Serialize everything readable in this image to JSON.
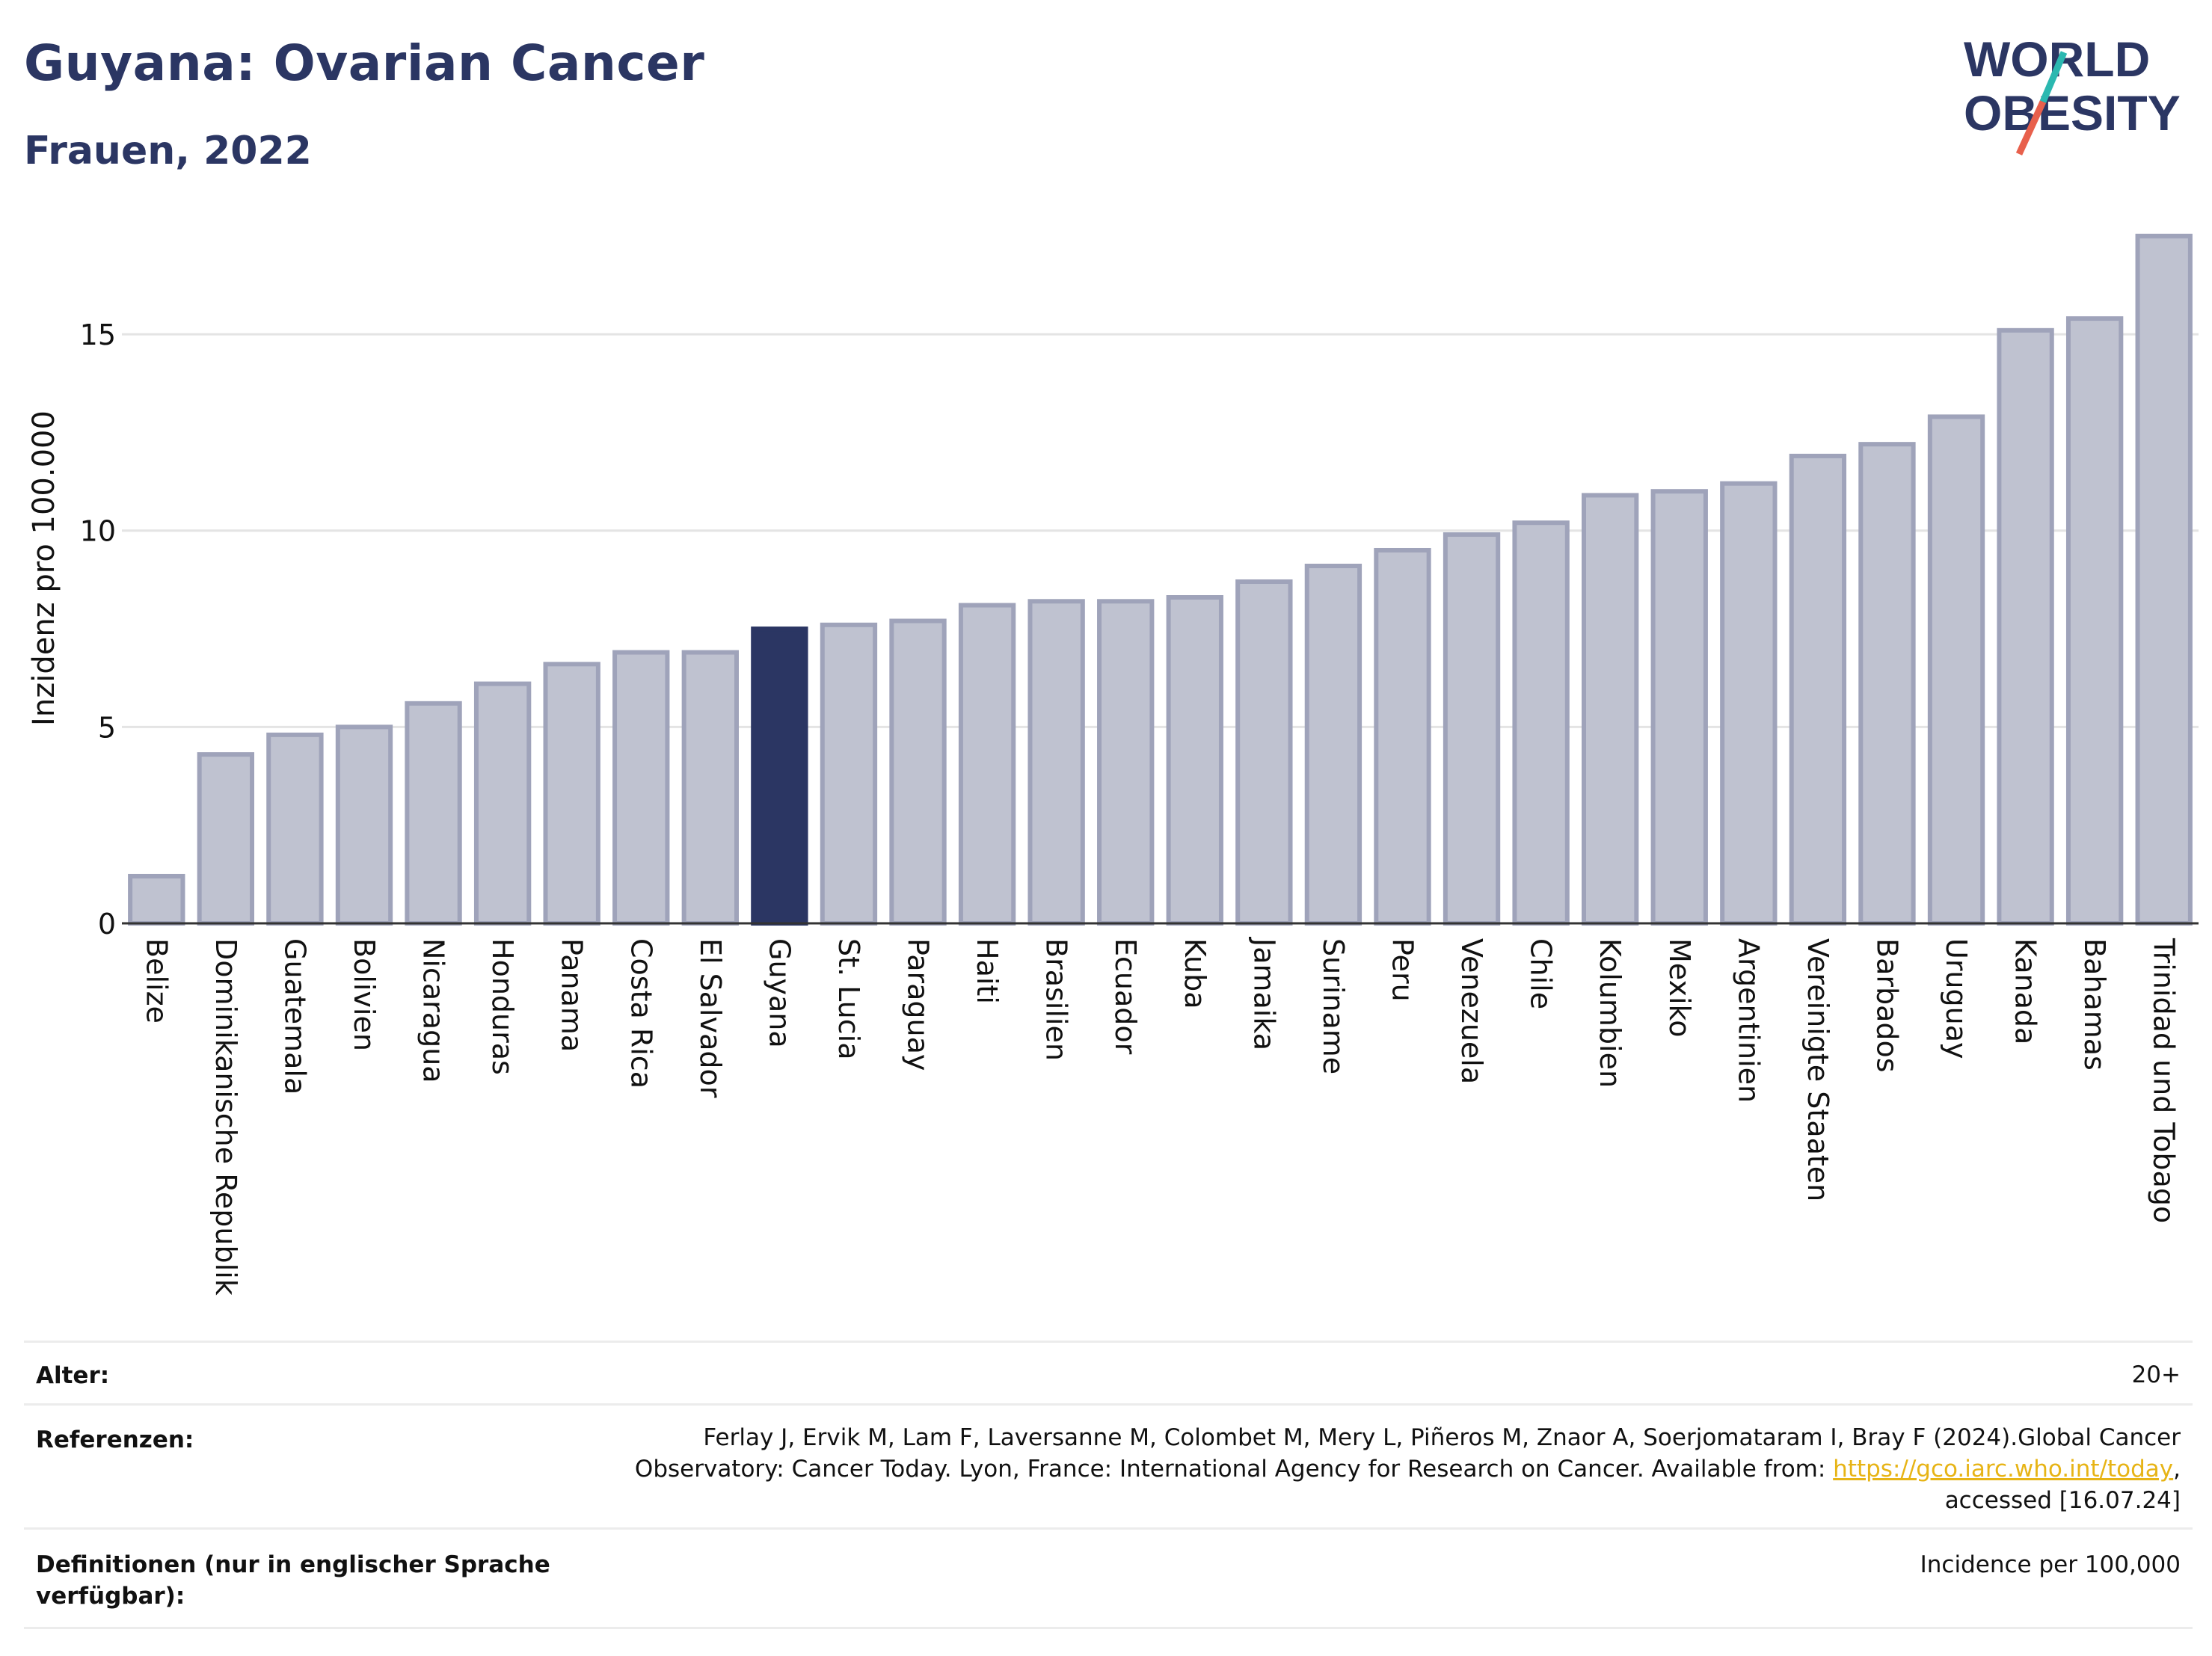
{
  "header": {
    "title": "Guyana: Ovarian Cancer",
    "subtitle": "Frauen, 2022"
  },
  "logo": {
    "line1": "WORLD",
    "line2": "OBESITY",
    "colors": {
      "text": "#2b3663",
      "slash_teal": "#2bb8b0",
      "slash_coral": "#e8604c"
    }
  },
  "chart_data": {
    "type": "bar",
    "ylabel": "Inzidenz pro 100.000",
    "ylim": [
      0,
      17.8
    ],
    "yticks": [
      0,
      5,
      10,
      15
    ],
    "grid": true,
    "highlight": "Guyana",
    "colors": {
      "bar": "#bfc2d0",
      "bar_edge": "#9fa3ba",
      "highlight": "#2b3663"
    },
    "categories": [
      "Belize",
      "Dominikanische Republik",
      "Guatemala",
      "Bolivien",
      "Nicaragua",
      "Honduras",
      "Panama",
      "Costa Rica",
      "El Salvador",
      "Guyana",
      "St. Lucia",
      "Paraguay",
      "Haiti",
      "Brasilien",
      "Ecuador",
      "Kuba",
      "Jamaika",
      "Suriname",
      "Peru",
      "Venezuela",
      "Chile",
      "Kolumbien",
      "Mexiko",
      "Argentinien",
      "Vereinigte Staaten",
      "Barbados",
      "Uruguay",
      "Kanada",
      "Bahamas",
      "Trinidad und Tobago"
    ],
    "values": [
      1.2,
      4.3,
      4.8,
      5.0,
      5.6,
      6.1,
      6.6,
      6.9,
      6.9,
      7.5,
      7.6,
      7.7,
      8.1,
      8.2,
      8.2,
      8.3,
      8.7,
      9.1,
      9.5,
      9.9,
      10.2,
      10.9,
      11.0,
      11.2,
      11.9,
      12.2,
      12.9,
      15.1,
      15.4,
      17.5
    ]
  },
  "footer": {
    "age_label": "Alter:",
    "age_value": "20+",
    "ref_label": "Referenzen:",
    "ref_line1": "Ferlay J, Ervik M, Lam F, Laversanne M, Colombet M, Mery L, Piñeros M, Znaor A, Soerjomataram I, Bray F (2024).Global Cancer",
    "ref_line2_pre": "Observatory: Cancer Today. Lyon, France: International Agency for Research on Cancer. Available from: ",
    "ref_link": "https://gco.iarc.who.int/today",
    "ref_line2_post": ",",
    "ref_line3": "accessed [16.07.24]",
    "def_label_1": "Definitionen (nur in englischer Sprache",
    "def_label_2": "verfügbar):",
    "def_value": "Incidence per 100,000"
  }
}
